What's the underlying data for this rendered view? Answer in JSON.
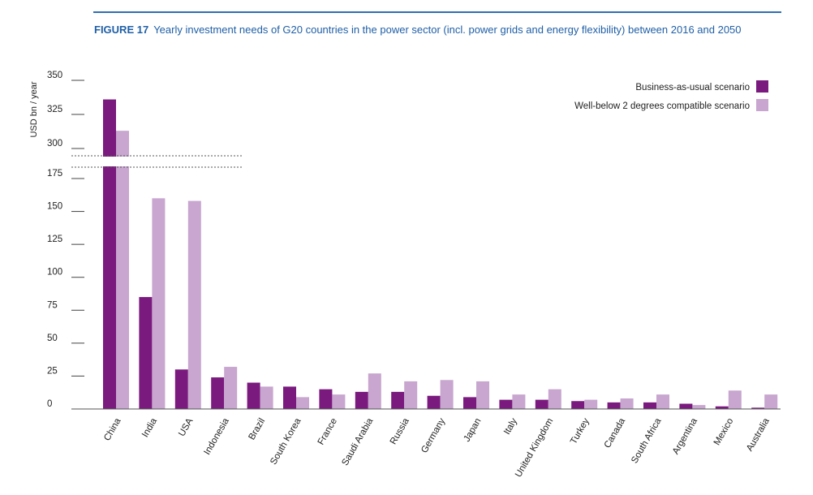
{
  "header": {
    "figure_label": "FIGURE 17",
    "title": "Yearly investment needs of G20 countries in the power sector (incl. power grids and energy flexibility) between 2016 and 2050"
  },
  "chart_data": {
    "type": "bar",
    "ylabel": "USD bn / year",
    "axis_break": {
      "from": 190,
      "to": 290
    },
    "yticks_lower": [
      0,
      25,
      50,
      75,
      100,
      125,
      150,
      175
    ],
    "yticks_upper": [
      300,
      325,
      350
    ],
    "ylim": [
      0,
      350
    ],
    "legend_position": "top-right",
    "categories": [
      "China",
      "India",
      "USA",
      "Indonesia",
      "Brazil",
      "South Korea",
      "France",
      "Saudi Arabia",
      "Russia",
      "Germany",
      "Japan",
      "Italy",
      "United Kingdom",
      "Turkey",
      "Canada",
      "South Africa",
      "Argentina",
      "Mexico",
      "Australia"
    ],
    "series": [
      {
        "name": "Business-as-usual scenario",
        "color": "#7a1a7e",
        "values": [
          336,
          85,
          30,
          24,
          20,
          17,
          15,
          13,
          13,
          10,
          9,
          7,
          7,
          6,
          5,
          5,
          4,
          2,
          1
        ]
      },
      {
        "name": "Well-below 2 degrees compatible scenario",
        "color": "#c8a6cf",
        "values": [
          313,
          160,
          158,
          32,
          17,
          9,
          11,
          27,
          21,
          22,
          21,
          11,
          15,
          7,
          8,
          11,
          3,
          14,
          11
        ]
      }
    ]
  }
}
